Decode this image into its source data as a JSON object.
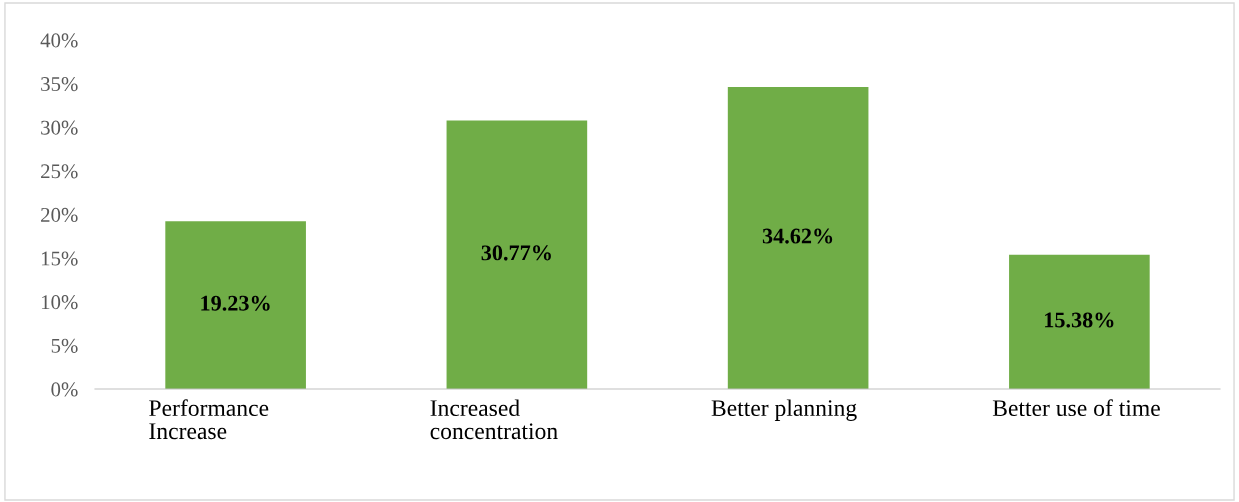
{
  "chart_data": {
    "type": "bar",
    "categories": [
      "Performance\nIncrease",
      "Increased\nconcentration",
      "Better planning",
      "Better use of time"
    ],
    "values": [
      19.23,
      30.77,
      34.62,
      15.38
    ],
    "value_labels": [
      "19.23%",
      "30.77%",
      "34.62%",
      "15.38%"
    ],
    "color": "#70ad47",
    "ylim": [
      0,
      40
    ],
    "yticks": [
      {
        "value": 0,
        "label": "0%"
      },
      {
        "value": 5,
        "label": "5%"
      },
      {
        "value": 10,
        "label": "10%"
      },
      {
        "value": 15,
        "label": "15%"
      },
      {
        "value": 20,
        "label": "20%"
      },
      {
        "value": 25,
        "label": "25%"
      },
      {
        "value": 30,
        "label": "30%"
      },
      {
        "value": 35,
        "label": "35%"
      },
      {
        "value": 40,
        "label": "40%"
      }
    ],
    "grid": false,
    "legend": false
  }
}
